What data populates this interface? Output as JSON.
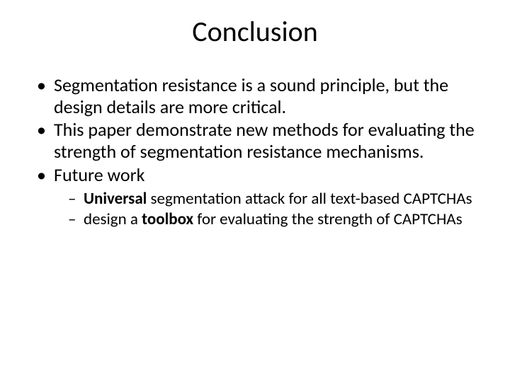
{
  "slide": {
    "title": "Conclusion",
    "bullets": [
      {
        "text": "Segmentation resistance is a sound principle, but the design details are more critical."
      },
      {
        "text": "This paper demonstrate new methods for evaluating the strength of segmentation resistance mechanisms."
      },
      {
        "text": "Future work",
        "sub": [
          {
            "prefix_bold": "Universal",
            "rest": " segmentation attack for all text-based CAPTCHAs"
          },
          {
            "prefix": "design a ",
            "mid_bold": "toolbox",
            "rest": " for evaluating the strength of CAPTCHAs"
          }
        ]
      }
    ]
  },
  "style": {
    "background_color": "#ffffff",
    "text_color": "#000000",
    "font_family": "Calibri",
    "title_fontsize": 40,
    "body_fontsize": 26,
    "sub_fontsize": 23,
    "slide_width": 720,
    "slide_height": 540
  }
}
